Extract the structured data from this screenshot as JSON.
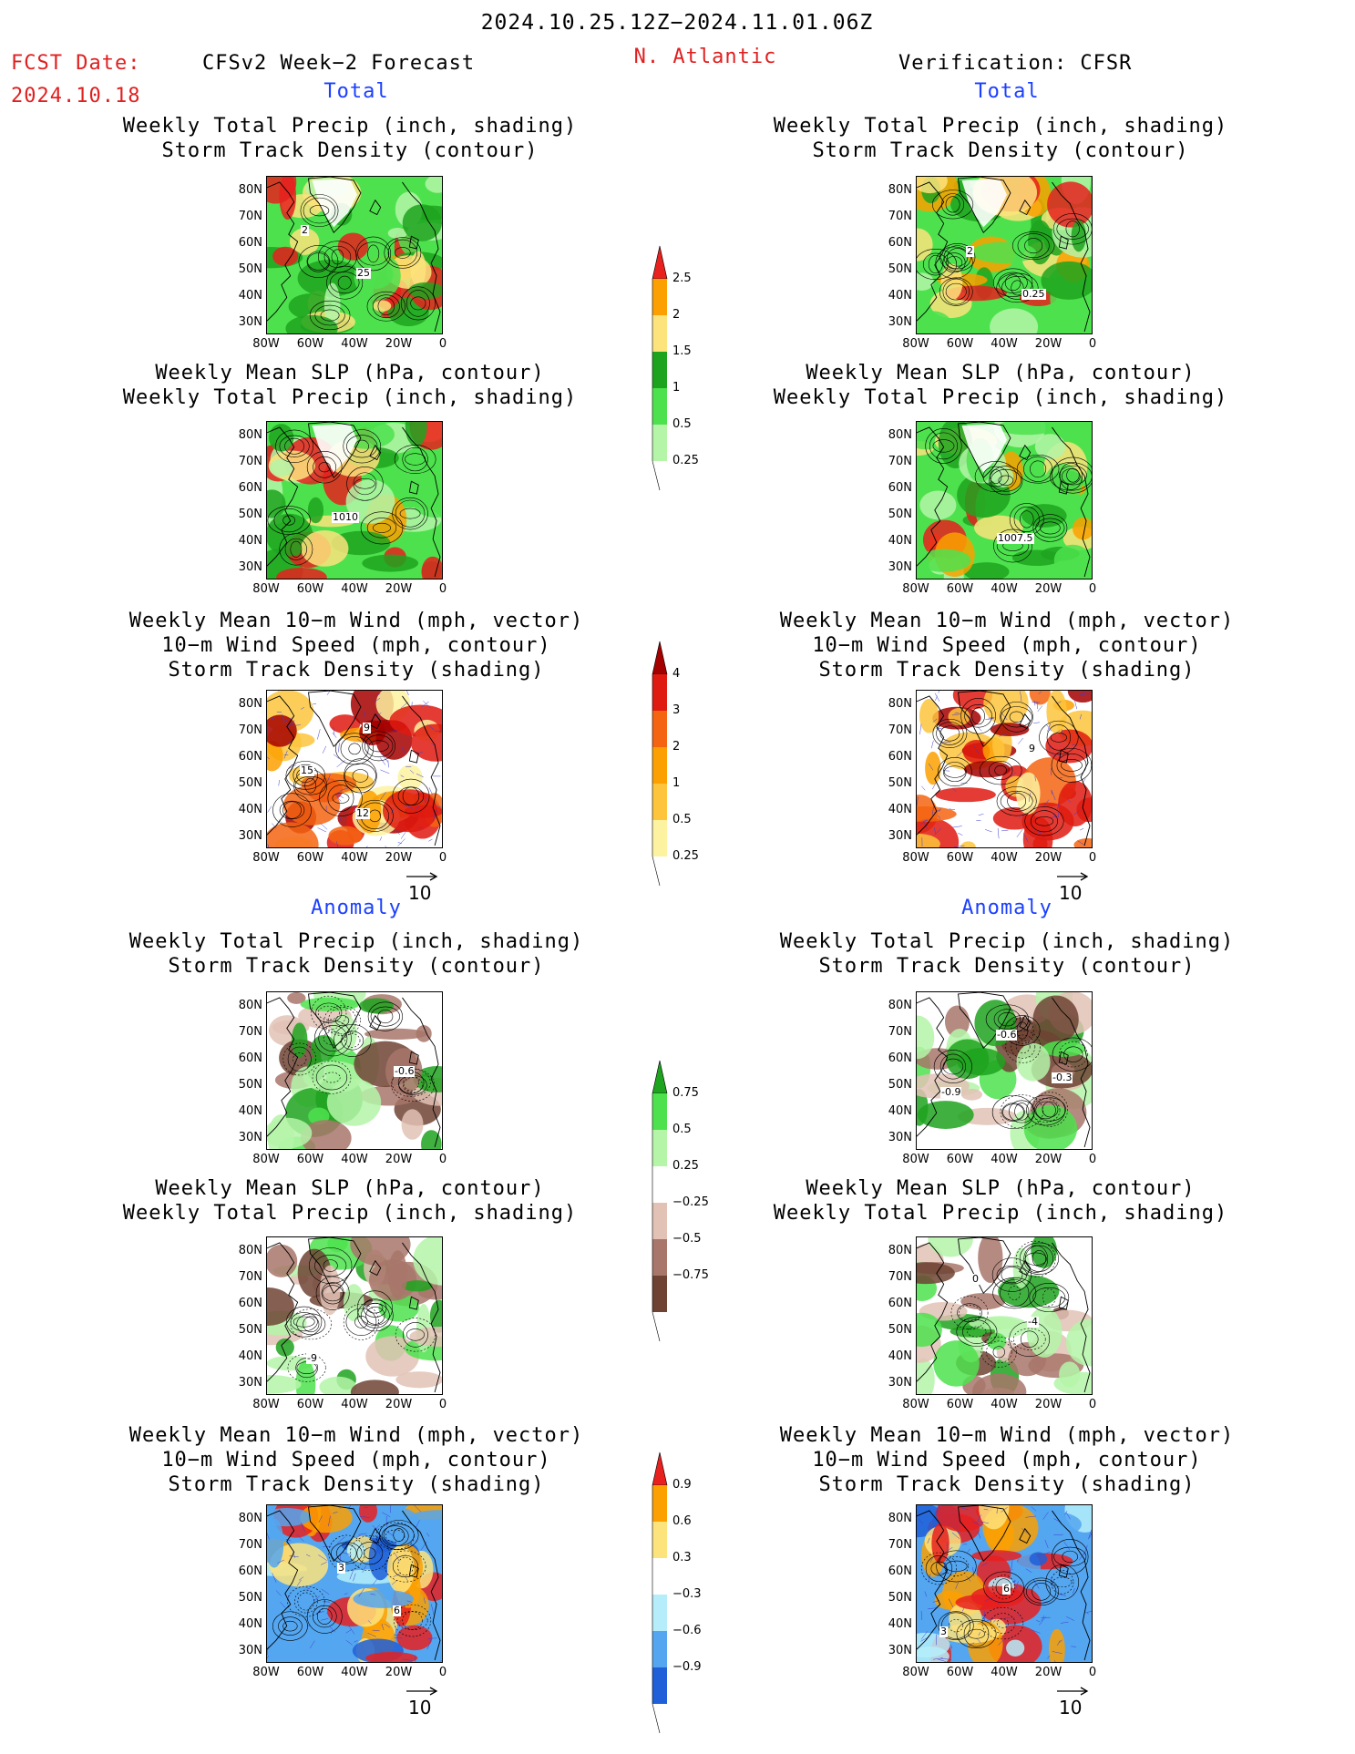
{
  "header": {
    "date_range": "2024.10.25.12Z−2024.11.01.06Z",
    "fcst_label": "FCST Date:",
    "fcst_date": "2024.10.18",
    "model_label": "CFSv2 Week−2 Forecast",
    "region": "N. Atlantic",
    "verification_label": "Verification: CFSR"
  },
  "sections": {
    "total": "Total",
    "anomaly": "Anomaly"
  },
  "titles": {
    "precip_track": [
      "Weekly Total Precip (inch, shading)",
      "Storm Track Density (contour)"
    ],
    "slp_precip": [
      "Weekly Mean SLP (hPa, contour)",
      "Weekly Total Precip (inch, shading)"
    ],
    "wind_track": [
      "Weekly Mean 10−m Wind (mph, vector)",
      "10−m Wind Speed (mph, contour)",
      "Storm Track Density (shading)"
    ]
  },
  "axes": {
    "lat_ticks": [
      "80N",
      "70N",
      "60N",
      "50N",
      "40N",
      "30N"
    ],
    "lon_ticks": [
      "80W",
      "60W",
      "40W",
      "20W",
      "0"
    ]
  },
  "reference_vector": "10",
  "map_labels": {
    "fc_total_precip": [
      "2",
      "25"
    ],
    "obs_total_precip": [
      "2",
      "0.25"
    ],
    "fc_total_slp": [
      "1010"
    ],
    "obs_total_slp": [
      "1007.5"
    ],
    "fc_total_wind": [
      "9",
      "15",
      "12"
    ],
    "obs_total_wind": [
      "9"
    ],
    "fc_anom_precip": [
      "-0.6"
    ],
    "obs_anom_precip": [
      "-0.9",
      "-0.6",
      "-0.3"
    ],
    "fc_anom_slp": [
      "-9"
    ],
    "obs_anom_slp": [
      "0",
      "-4"
    ],
    "fc_anom_wind": [
      "3",
      "6"
    ],
    "obs_anom_wind": [
      "6",
      "3"
    ]
  },
  "colorbars": {
    "total_precip": {
      "labels": [
        "2.5",
        "2",
        "1.5",
        "1",
        "0.5",
        "0.25"
      ],
      "colors": [
        "#e8201e",
        "#fba000",
        "#fde37c",
        "#1ea31e",
        "#4de24d",
        "#b4f5a8"
      ]
    },
    "total_track": {
      "labels": [
        "4",
        "3",
        "2",
        "1",
        "0.5",
        "0.25"
      ],
      "colors": [
        "#a40000",
        "#df1a10",
        "#f56410",
        "#fba000",
        "#fdc43c",
        "#fdf2a0"
      ]
    },
    "anom_precip": {
      "labels": [
        "0.75",
        "0.5",
        "0.25",
        "−0.25",
        "−0.5",
        "−0.75"
      ],
      "colors": [
        "#1ea31e",
        "#4de24d",
        "#b4f5a8",
        "#ffffff",
        "#e2c2b5",
        "#a8766a",
        "#6e4334"
      ]
    },
    "anom_track": {
      "labels": [
        "0.9",
        "0.6",
        "0.3",
        "−0.3",
        "−0.6",
        "−0.9"
      ],
      "colors": [
        "#e8201e",
        "#fba000",
        "#fde37c",
        "#ffffff",
        "#b5eefa",
        "#54a6f0",
        "#1f5fd8"
      ]
    }
  }
}
